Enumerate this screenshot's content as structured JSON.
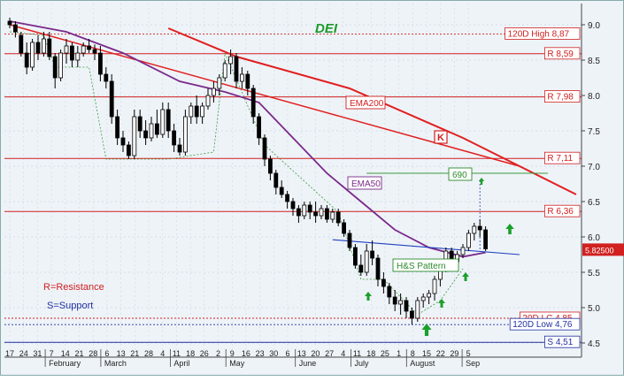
{
  "chart_data": {
    "type": "candlestick",
    "title": "DEI",
    "xlabel": "",
    "ylabel": "",
    "ylim": [
      4.3,
      9.3
    ],
    "yticks": [
      4.5,
      5.0,
      5.5,
      6.0,
      6.5,
      7.0,
      7.5,
      8.0,
      8.5,
      9.0
    ],
    "ytick_labels": [
      "4.5",
      "5.0",
      "5.5",
      "6.0",
      "6.5",
      "7.0",
      "7.5",
      "8.0",
      "8.5",
      "9.0"
    ],
    "x_day_labels": [
      "17",
      "24",
      "31",
      "7",
      "14",
      "21",
      "28",
      "6",
      "13",
      "21",
      "28",
      "4",
      "11",
      "18",
      "26",
      "2",
      "9",
      "16",
      "23",
      "30",
      "6",
      "13",
      "20",
      "27",
      "4",
      "11",
      "18",
      "25",
      "1",
      "8",
      "15",
      "22",
      "29",
      "5"
    ],
    "x_month_labels": [
      "February",
      "March",
      "April",
      "May",
      "June",
      "July",
      "August",
      "Sep"
    ],
    "grid": true,
    "last_price_label": "5.82500",
    "candles": [
      [
        0,
        9.05,
        9.1,
        8.95,
        9.0
      ],
      [
        1,
        9.0,
        9.05,
        8.82,
        8.9
      ],
      [
        2,
        8.85,
        8.9,
        8.55,
        8.6
      ],
      [
        3,
        8.6,
        8.75,
        8.3,
        8.4
      ],
      [
        4,
        8.4,
        8.8,
        8.35,
        8.75
      ],
      [
        5,
        8.75,
        8.85,
        8.5,
        8.6
      ],
      [
        6,
        8.6,
        8.9,
        8.55,
        8.8
      ],
      [
        7,
        8.8,
        8.9,
        8.5,
        8.55
      ],
      [
        8,
        8.55,
        8.6,
        8.1,
        8.25
      ],
      [
        9,
        8.25,
        8.65,
        8.2,
        8.6
      ],
      [
        10,
        8.6,
        8.8,
        8.45,
        8.7
      ],
      [
        11,
        8.7,
        8.75,
        8.4,
        8.5
      ],
      [
        12,
        8.5,
        8.7,
        8.4,
        8.6
      ],
      [
        13,
        8.6,
        8.75,
        8.55,
        8.7
      ],
      [
        14,
        8.7,
        8.8,
        8.6,
        8.65
      ],
      [
        15,
        8.65,
        8.72,
        8.5,
        8.6
      ],
      [
        16,
        8.6,
        8.7,
        8.2,
        8.3
      ],
      [
        17,
        8.3,
        8.4,
        8.1,
        8.2
      ],
      [
        18,
        8.2,
        8.3,
        7.6,
        7.7
      ],
      [
        19,
        7.7,
        7.8,
        7.3,
        7.4
      ],
      [
        20,
        7.4,
        7.5,
        7.2,
        7.3
      ],
      [
        21,
        7.3,
        7.35,
        7.1,
        7.15
      ],
      [
        22,
        7.15,
        7.8,
        7.1,
        7.7
      ],
      [
        23,
        7.7,
        7.8,
        7.4,
        7.5
      ],
      [
        24,
        7.5,
        7.65,
        7.3,
        7.4
      ],
      [
        25,
        7.4,
        7.7,
        7.35,
        7.6
      ],
      [
        26,
        7.6,
        7.8,
        7.4,
        7.45
      ],
      [
        27,
        7.45,
        7.9,
        7.4,
        7.8
      ],
      [
        28,
        7.8,
        7.9,
        7.4,
        7.5
      ],
      [
        29,
        7.5,
        7.6,
        7.2,
        7.3
      ],
      [
        30,
        7.3,
        7.4,
        7.15,
        7.2
      ],
      [
        31,
        7.2,
        7.8,
        7.15,
        7.7
      ],
      [
        32,
        7.7,
        7.9,
        7.6,
        7.85
      ],
      [
        33,
        7.85,
        8.0,
        7.6,
        7.7
      ],
      [
        34,
        7.7,
        7.9,
        7.6,
        7.85
      ],
      [
        35,
        7.85,
        8.1,
        7.8,
        8.0
      ],
      [
        36,
        8.0,
        8.2,
        7.9,
        8.1
      ],
      [
        37,
        8.1,
        8.3,
        8.0,
        8.25
      ],
      [
        38,
        8.25,
        8.5,
        8.2,
        8.45
      ],
      [
        39,
        8.45,
        8.65,
        8.3,
        8.55
      ],
      [
        40,
        8.55,
        8.6,
        8.1,
        8.2
      ],
      [
        41,
        8.2,
        8.4,
        8.1,
        8.3
      ],
      [
        42,
        8.3,
        8.35,
        8.0,
        8.1
      ],
      [
        43,
        8.1,
        8.15,
        7.6,
        7.7
      ],
      [
        44,
        7.7,
        7.75,
        7.3,
        7.4
      ],
      [
        45,
        7.4,
        7.45,
        7.0,
        7.1
      ],
      [
        46,
        7.1,
        7.15,
        6.8,
        6.9
      ],
      [
        47,
        6.9,
        6.95,
        6.6,
        6.7
      ],
      [
        48,
        6.7,
        6.8,
        6.55,
        6.6
      ],
      [
        49,
        6.6,
        6.65,
        6.4,
        6.5
      ],
      [
        50,
        6.5,
        6.55,
        6.3,
        6.4
      ],
      [
        51,
        6.4,
        6.45,
        6.2,
        6.3
      ],
      [
        52,
        6.3,
        6.5,
        6.25,
        6.45
      ],
      [
        53,
        6.45,
        6.5,
        6.25,
        6.35
      ],
      [
        54,
        6.35,
        6.5,
        6.2,
        6.3
      ],
      [
        55,
        6.3,
        6.45,
        6.25,
        6.4
      ],
      [
        56,
        6.4,
        6.45,
        6.2,
        6.25
      ],
      [
        57,
        6.25,
        6.4,
        6.2,
        6.35
      ],
      [
        58,
        6.35,
        6.4,
        6.15,
        6.2
      ],
      [
        59,
        6.2,
        6.25,
        6.0,
        6.05
      ],
      [
        60,
        6.05,
        6.1,
        5.8,
        5.85
      ],
      [
        61,
        5.85,
        5.9,
        5.55,
        5.6
      ],
      [
        62,
        5.6,
        5.75,
        5.45,
        5.5
      ],
      [
        63,
        5.5,
        5.9,
        5.45,
        5.8
      ],
      [
        64,
        5.8,
        5.95,
        5.6,
        5.7
      ],
      [
        65,
        5.7,
        5.75,
        5.3,
        5.4
      ],
      [
        66,
        5.4,
        5.5,
        5.2,
        5.3
      ],
      [
        67,
        5.3,
        5.35,
        5.05,
        5.15
      ],
      [
        68,
        5.15,
        5.25,
        4.95,
        5.05
      ],
      [
        69,
        5.05,
        5.2,
        4.9,
        5.1
      ],
      [
        70,
        5.1,
        5.15,
        4.85,
        4.95
      ],
      [
        71,
        4.95,
        5.0,
        4.76,
        4.85
      ],
      [
        72,
        4.85,
        5.15,
        4.8,
        5.1
      ],
      [
        73,
        5.1,
        5.2,
        5.0,
        5.15
      ],
      [
        74,
        5.15,
        5.25,
        5.05,
        5.2
      ],
      [
        75,
        5.2,
        5.45,
        5.1,
        5.4
      ],
      [
        76,
        5.4,
        5.6,
        5.3,
        5.55
      ],
      [
        77,
        5.55,
        5.85,
        5.5,
        5.8
      ],
      [
        78,
        5.8,
        5.85,
        5.6,
        5.65
      ],
      [
        79,
        5.65,
        5.8,
        5.6,
        5.75
      ],
      [
        80,
        5.75,
        5.9,
        5.7,
        5.85
      ],
      [
        81,
        5.85,
        6.1,
        5.8,
        6.05
      ],
      [
        82,
        6.05,
        6.2,
        5.95,
        6.15
      ],
      [
        83,
        6.15,
        6.25,
        6.0,
        6.1
      ],
      [
        84,
        6.1,
        6.15,
        5.8,
        5.83
      ]
    ],
    "ema50": [
      [
        0,
        9.05
      ],
      [
        10,
        8.9
      ],
      [
        20,
        8.6
      ],
      [
        30,
        8.2
      ],
      [
        38,
        8.05
      ],
      [
        44,
        7.9
      ],
      [
        50,
        7.4
      ],
      [
        56,
        6.9
      ],
      [
        62,
        6.5
      ],
      [
        68,
        6.1
      ],
      [
        74,
        5.85
      ],
      [
        80,
        5.72
      ],
      [
        84,
        5.78
      ]
    ],
    "ema200": [
      [
        28,
        8.95
      ],
      [
        40,
        8.55
      ],
      [
        60,
        8.1
      ],
      [
        80,
        7.4
      ],
      [
        100,
        6.6
      ]
    ],
    "stop_line": [
      [
        0,
        8.9
      ],
      [
        6,
        8.85
      ],
      [
        8,
        8.4
      ],
      [
        14,
        8.4
      ],
      [
        17,
        7.1
      ],
      [
        28,
        7.1
      ],
      [
        36,
        7.2
      ],
      [
        38,
        8.6
      ],
      [
        45,
        7.3
      ],
      [
        58,
        6.35
      ],
      [
        62,
        5.4
      ],
      [
        66,
        5.4
      ],
      [
        72,
        4.9
      ],
      [
        76,
        5.1
      ],
      [
        80,
        5.55
      ]
    ],
    "h_lines": [
      {
        "label": "120D High 8,87",
        "value": 8.87,
        "color": "#d02020",
        "style": "dotted"
      },
      {
        "label": "R 8,59",
        "value": 8.59,
        "color": "#d02020",
        "style": "solid"
      },
      {
        "label": "R 7,98",
        "value": 7.98,
        "color": "#d02020",
        "style": "solid"
      },
      {
        "label": "R 7,11",
        "value": 7.11,
        "color": "#d02020",
        "style": "solid"
      },
      {
        "label": "R 6,36",
        "value": 6.36,
        "color": "#d02020",
        "style": "solid"
      },
      {
        "label": "20D LC 4,85",
        "value": 4.85,
        "color": "#d02020",
        "style": "dotted"
      },
      {
        "label": "120D Low 4,76",
        "value": 4.76,
        "color": "#2030a0",
        "style": "dotted"
      },
      {
        "label": "S 4,51",
        "value": 4.51,
        "color": "#2030a0",
        "style": "solid"
      }
    ],
    "annotations": {
      "ema200_label": "EMA200",
      "ema50_label": "EMA50",
      "k_label": "K",
      "target_label": "690",
      "target_value": 6.9,
      "pattern_label": "H&S Pattern",
      "resistance_note": "R=Resistance",
      "support_note": "S=Support"
    }
  }
}
